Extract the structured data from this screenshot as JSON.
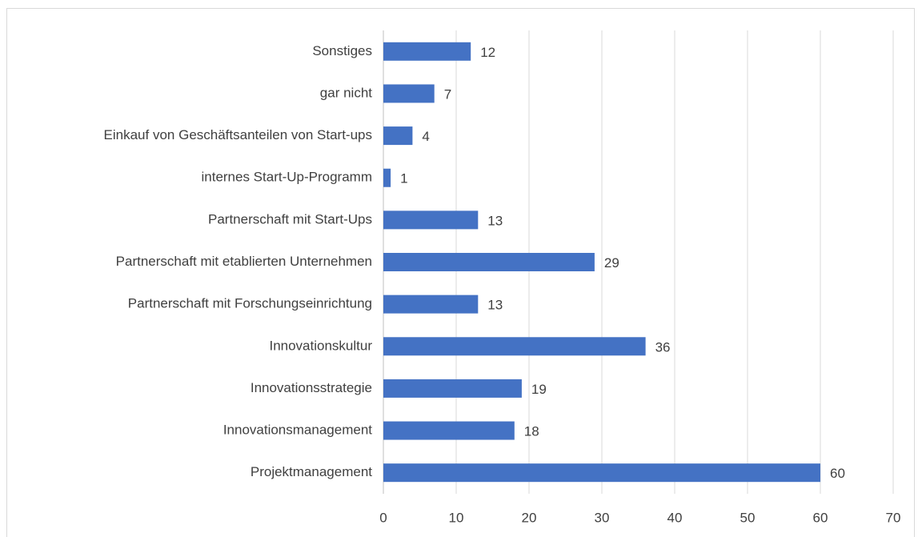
{
  "chart_data": {
    "type": "bar",
    "orientation": "horizontal",
    "categories": [
      "Sonstiges",
      "gar nicht",
      "Einkauf von Geschäftsanteilen von Start-ups",
      "internes Start-Up-Programm",
      "Partnerschaft mit Start-Ups",
      "Partnerschaft mit etablierten Unternehmen",
      "Partnerschaft mit Forschungseinrichtung",
      "Innovationskultur",
      "Innovationsstrategie",
      "Innovationsmanagement",
      "Projektmanagement"
    ],
    "values": [
      12,
      7,
      4,
      1,
      13,
      29,
      13,
      36,
      19,
      18,
      60
    ],
    "color": "#4472c4",
    "xlim": [
      0,
      70
    ],
    "xticks": [
      0,
      10,
      20,
      30,
      40,
      50,
      60,
      70
    ],
    "grid": true
  }
}
